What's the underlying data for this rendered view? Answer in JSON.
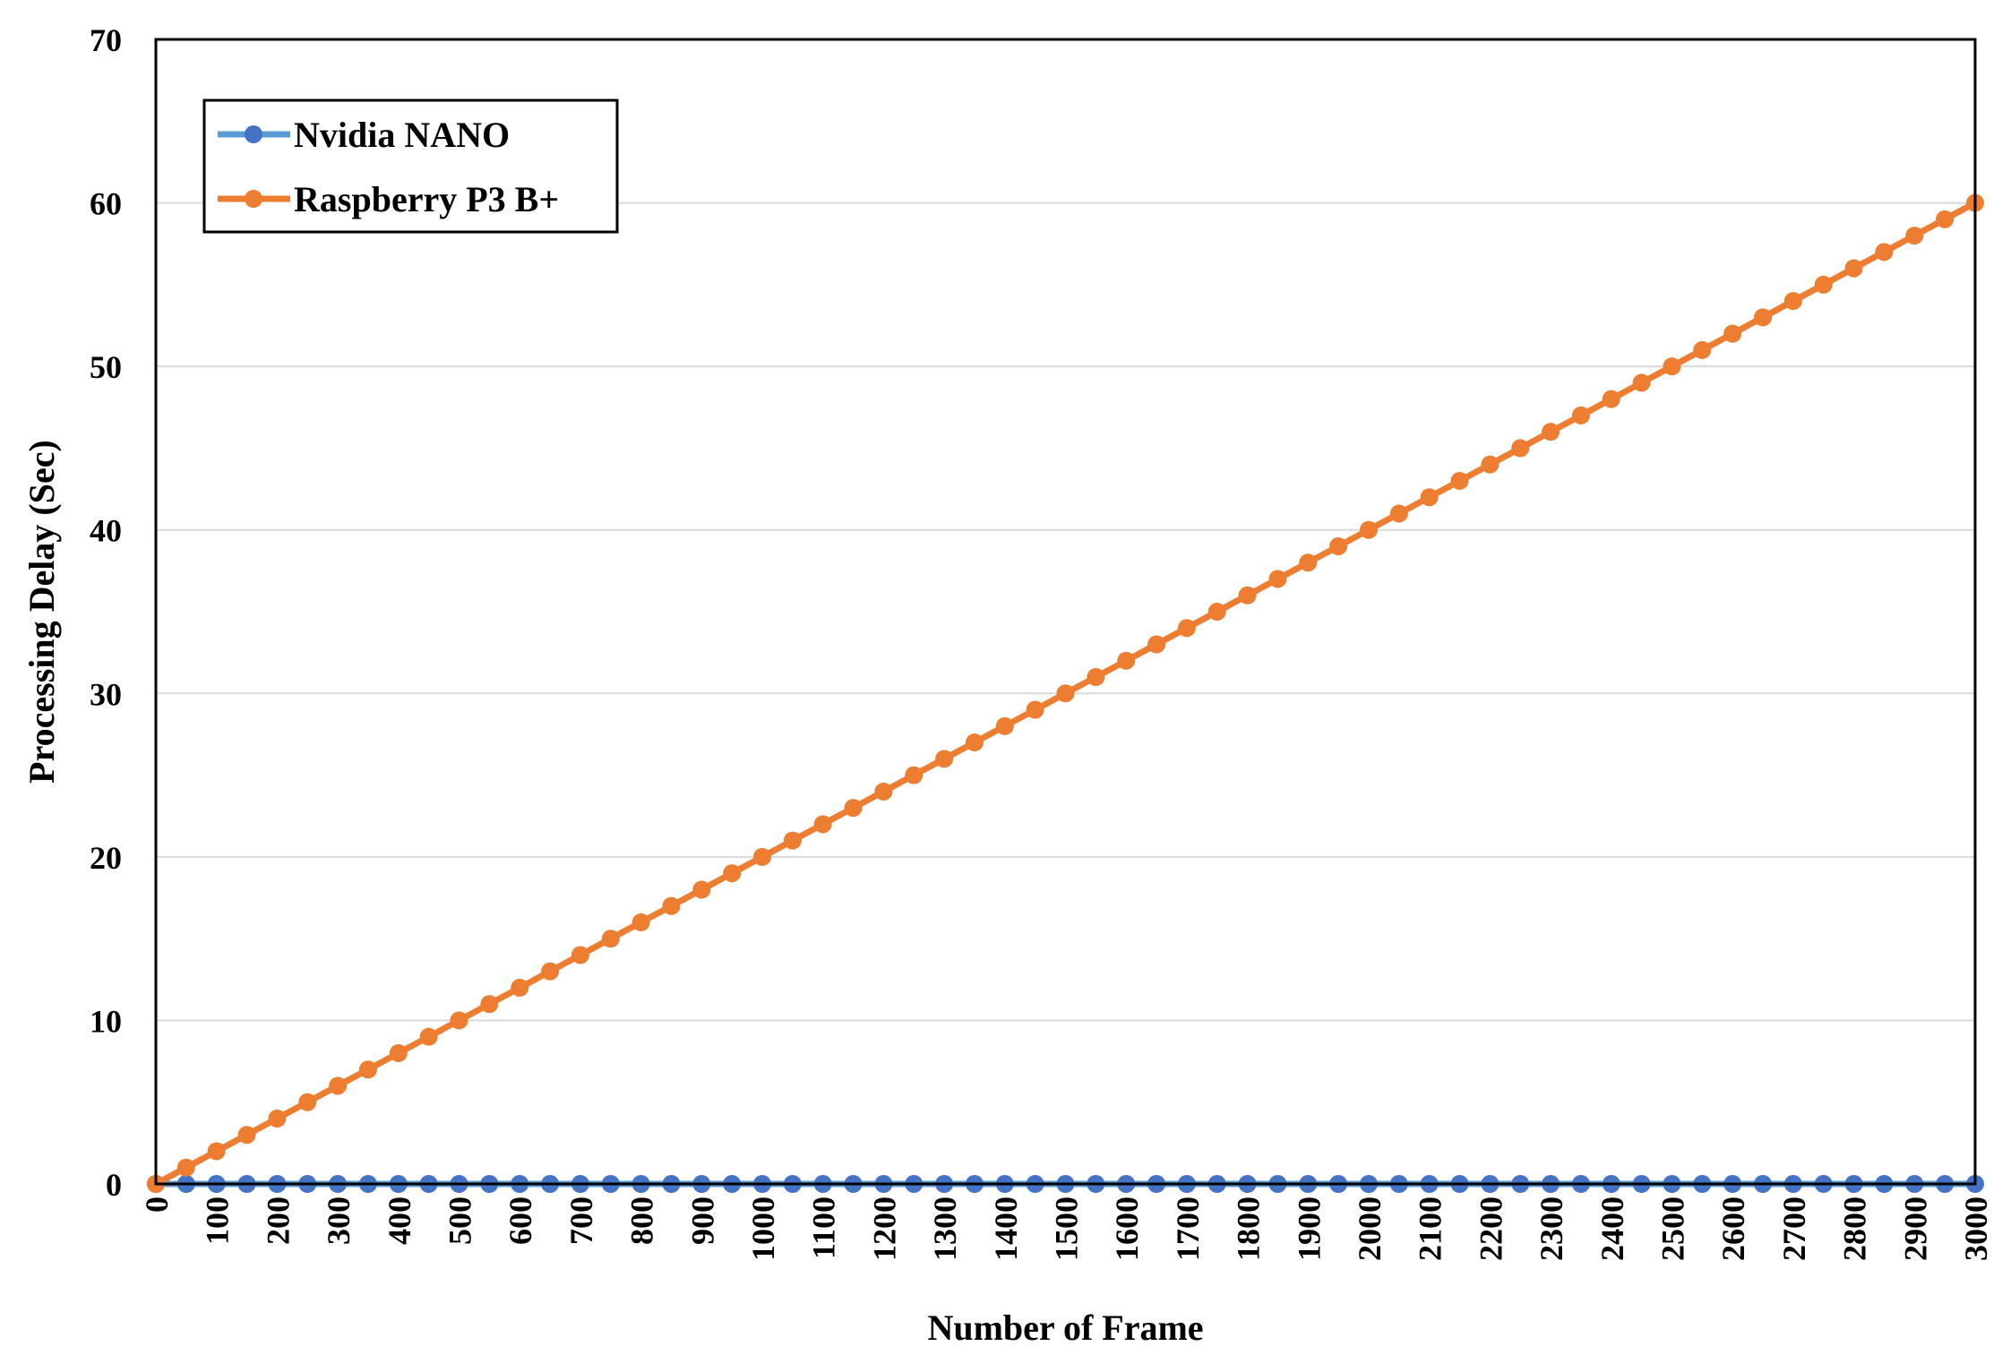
{
  "chart_data": {
    "type": "line",
    "title": "",
    "xlabel": "Number of Frame",
    "ylabel": "Processing Delay (Sec)",
    "xlim": [
      0,
      3000
    ],
    "ylim": [
      0,
      70
    ],
    "yticks": [
      0,
      10,
      20,
      30,
      40,
      50,
      60,
      70
    ],
    "xticks": [
      0,
      100,
      200,
      300,
      400,
      500,
      600,
      700,
      800,
      900,
      1000,
      1100,
      1200,
      1300,
      1400,
      1500,
      1600,
      1700,
      1800,
      1900,
      2000,
      2100,
      2200,
      2300,
      2400,
      2500,
      2600,
      2700,
      2800,
      2900,
      3000
    ],
    "grid": "horizontal",
    "legend_position": "top-left",
    "x": [
      0,
      50,
      100,
      150,
      200,
      250,
      300,
      350,
      400,
      450,
      500,
      550,
      600,
      650,
      700,
      750,
      800,
      850,
      900,
      950,
      1000,
      1050,
      1100,
      1150,
      1200,
      1250,
      1300,
      1350,
      1400,
      1450,
      1500,
      1550,
      1600,
      1650,
      1700,
      1750,
      1800,
      1850,
      1900,
      1950,
      2000,
      2050,
      2100,
      2150,
      2200,
      2250,
      2300,
      2350,
      2400,
      2450,
      2500,
      2550,
      2600,
      2650,
      2700,
      2750,
      2800,
      2850,
      2900,
      2950,
      3000
    ],
    "series": [
      {
        "name": "Nvidia NANO",
        "line_color": "#5B9BD5",
        "marker_color": "#4472C4",
        "values": [
          0,
          0,
          0,
          0,
          0,
          0,
          0,
          0,
          0,
          0,
          0,
          0,
          0,
          0,
          0,
          0,
          0,
          0,
          0,
          0,
          0,
          0,
          0,
          0,
          0,
          0,
          0,
          0,
          0,
          0,
          0,
          0,
          0,
          0,
          0,
          0,
          0,
          0,
          0,
          0,
          0,
          0,
          0,
          0,
          0,
          0,
          0,
          0,
          0,
          0,
          0,
          0,
          0,
          0,
          0,
          0,
          0,
          0,
          0,
          0,
          0
        ]
      },
      {
        "name": "Raspberry P3 B+",
        "line_color": "#ED7D31",
        "marker_color": "#ED7D31",
        "values": [
          0,
          1,
          2,
          3,
          4,
          5,
          6,
          7,
          8,
          9,
          10,
          11,
          12,
          13,
          14,
          15,
          16,
          17,
          18,
          19,
          20,
          21,
          22,
          23,
          24,
          25,
          26,
          27,
          28,
          29,
          30,
          31,
          32,
          33,
          34,
          35,
          36,
          37,
          38,
          39,
          40,
          41,
          42,
          43,
          44,
          45,
          46,
          47,
          48,
          49,
          50,
          51,
          52,
          53,
          54,
          55,
          56,
          57,
          58,
          59,
          60
        ]
      }
    ]
  }
}
